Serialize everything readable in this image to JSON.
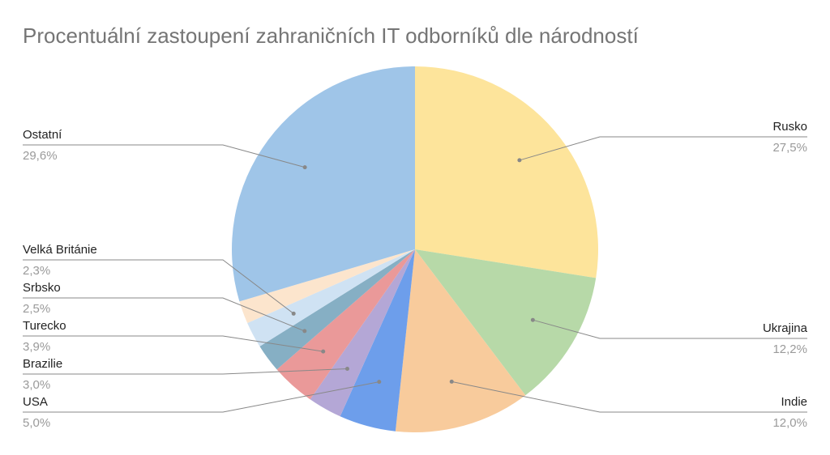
{
  "chart_data": {
    "type": "pie",
    "title": "Procentuální zastoupení zahraničních IT odborníků dle národností",
    "categories": [
      "Rusko",
      "Ukrajina",
      "Indie",
      "USA",
      "Brazilie",
      "Turecko",
      "Srbsko",
      "Velká Británie",
      null,
      "Ostatní"
    ],
    "values": [
      27.5,
      12.2,
      12.0,
      5.0,
      3.0,
      3.9,
      2.5,
      2.3,
      2.0,
      29.6
    ],
    "value_labels": [
      "27,5%",
      "12,2%",
      "12,0%",
      "5,0%",
      "3,0%",
      "3,9%",
      "2,5%",
      "2,3%",
      null,
      "29,6%"
    ],
    "colors": [
      "#fde49b",
      "#b7d9a8",
      "#f8cb9c",
      "#6d9eeb",
      "#b4a7d6",
      "#ea9999",
      "#86afc4",
      "#cfe2f3",
      "#fce5cd",
      "#9fc5e8"
    ]
  }
}
